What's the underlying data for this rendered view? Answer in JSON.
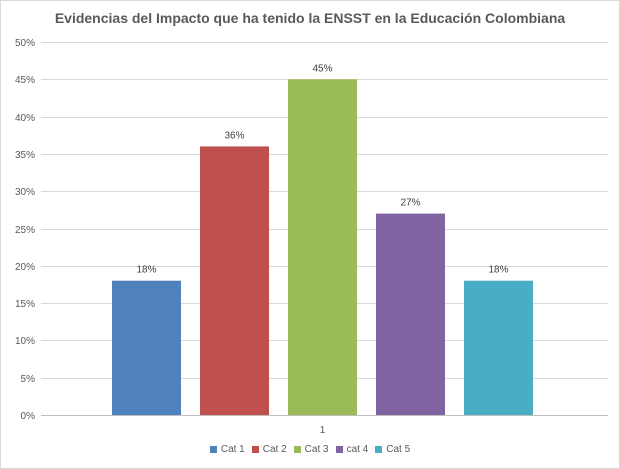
{
  "chart_data": {
    "type": "bar",
    "title": "Evidencias del Impacto que ha tenido la ENSST en la Educación Colombiana",
    "categories": [
      "1"
    ],
    "series": [
      {
        "name": "Cat 1",
        "values": [
          0.18
        ],
        "label": "18%",
        "color": "#4f81bd"
      },
      {
        "name": "Cat 2",
        "values": [
          0.36
        ],
        "label": "36%",
        "color": "#c0504d"
      },
      {
        "name": "Cat 3",
        "values": [
          0.45
        ],
        "label": "45%",
        "color": "#9bbb59"
      },
      {
        "name": "cat 4",
        "values": [
          0.27
        ],
        "label": "27%",
        "color": "#8064a2"
      },
      {
        "name": "Cat 5",
        "values": [
          0.18
        ],
        "label": "18%",
        "color": "#4bacc6"
      }
    ],
    "ylim": [
      0,
      0.5
    ],
    "y_ticks": [
      "0%",
      "5%",
      "10%",
      "15%",
      "20%",
      "25%",
      "30%",
      "35%",
      "40%",
      "45%",
      "50%"
    ],
    "xlabel": "",
    "ylabel": "",
    "grid": true,
    "legend": "bottom"
  }
}
